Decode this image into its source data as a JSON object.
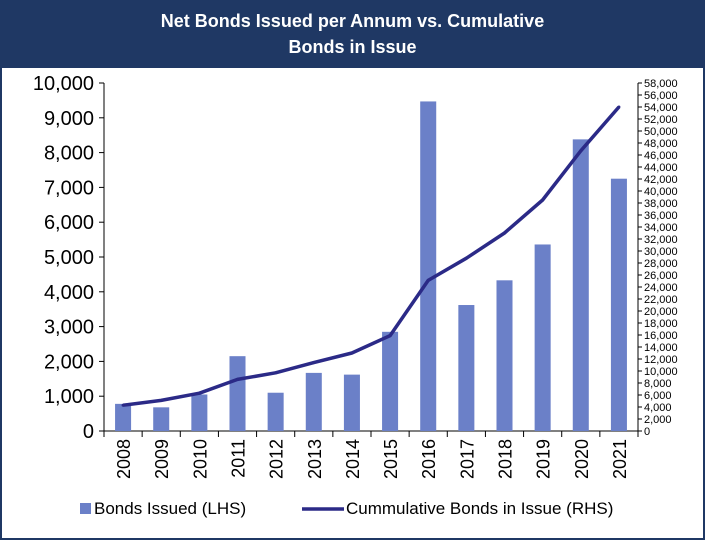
{
  "chart_data": {
    "type": "bar",
    "title_line1": "Net Bonds Issued per Annum vs. Cumulative",
    "title_line2": "Bonds in Issue",
    "categories": [
      "2008",
      "2009",
      "2010",
      "2011",
      "2012",
      "2013",
      "2014",
      "2015",
      "2016",
      "2017",
      "2018",
      "2019",
      "2020",
      "2021"
    ],
    "series": [
      {
        "name": "Bonds Issued (LHS)",
        "type": "bar",
        "axis": "left",
        "color": "#6b80c8",
        "values": [
          780,
          680,
          1050,
          2150,
          1100,
          1670,
          1620,
          2850,
          9470,
          3620,
          4330,
          5360,
          8380,
          7250
        ]
      },
      {
        "name": "Cummulative Bonds in Issue (RHS)",
        "type": "line",
        "axis": "right",
        "color": "#2b2a87",
        "values": [
          4300,
          5100,
          6300,
          8600,
          9700,
          11400,
          13000,
          15900,
          25100,
          28800,
          33000,
          38500,
          46700,
          54000
        ]
      }
    ],
    "ylim_left": [
      0,
      10000
    ],
    "ylim_right": [
      0,
      58000
    ],
    "yticks_left": [
      "0",
      "1,000",
      "2,000",
      "3,000",
      "4,000",
      "5,000",
      "6,000",
      "7,000",
      "8,000",
      "9,000",
      "10,000"
    ],
    "yticks_right": [
      "0",
      "2,000",
      "4,000",
      "6,000",
      "8,000",
      "10,000",
      "12,000",
      "14,000",
      "16,000",
      "18,000",
      "20,000",
      "22,000",
      "24,000",
      "26,000",
      "28,000",
      "30,000",
      "32,000",
      "34,000",
      "36,000",
      "38,000",
      "40,000",
      "42,000",
      "44,000",
      "46,000",
      "48,000",
      "50,000",
      "52,000",
      "54,000",
      "56,000",
      "58,000"
    ],
    "legend_position": "bottom",
    "grid": false
  },
  "colors": {
    "title_bg": "#1f3864",
    "bar": "#6b80c8",
    "line": "#2b2a87"
  }
}
